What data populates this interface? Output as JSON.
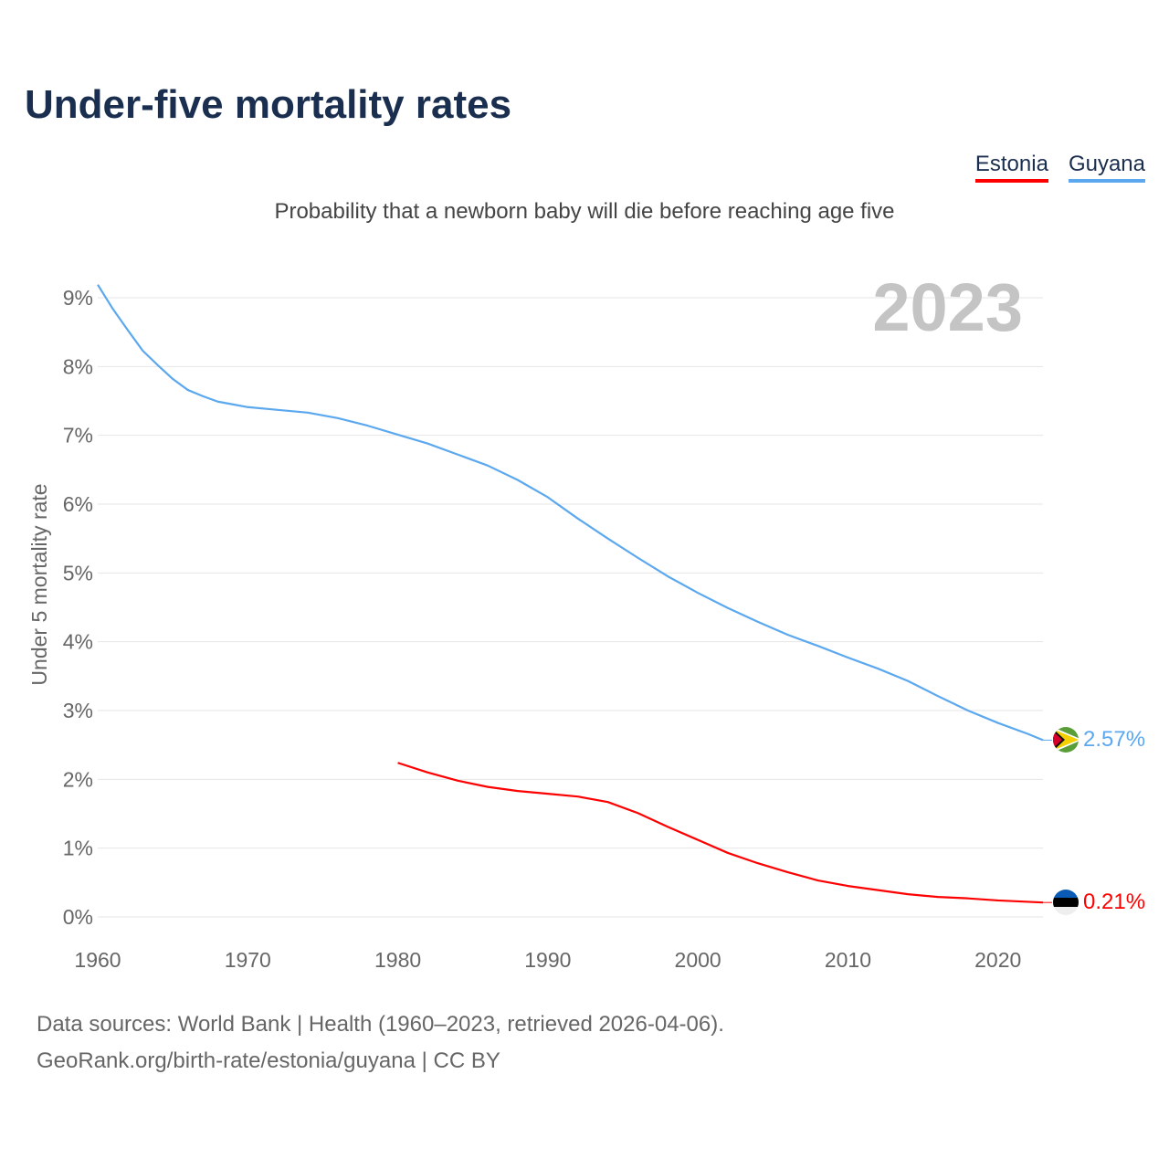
{
  "title": "Under-five mortality rates",
  "subtitle": "Probability that a newborn baby will die before reaching age five",
  "source_line1": "Data sources: World Bank | Health (1960–2023, retrieved 2026-04-06).",
  "source_line2": "GeoRank.org/birth-rate/estonia/guyana | CC BY",
  "chart_data": {
    "type": "line",
    "title": "Under-five mortality rates",
    "xlabel": "",
    "ylabel": "Under 5 mortality rate",
    "year_label": "2023",
    "xlim": [
      1960,
      2023
    ],
    "ylim": [
      0,
      9
    ],
    "x_ticks": [
      "1960",
      "1970",
      "1980",
      "1990",
      "2000",
      "2010",
      "2020"
    ],
    "y_ticks": [
      "0%",
      "1%",
      "2%",
      "3%",
      "4%",
      "5%",
      "6%",
      "7%",
      "8%",
      "9%"
    ],
    "grid": true,
    "legend_position": "top-right",
    "series": [
      {
        "name": "Estonia",
        "color": "#ff0000",
        "end_label": "0.21%",
        "x": [
          1980,
          1982,
          1984,
          1986,
          1988,
          1990,
          1992,
          1994,
          1996,
          1998,
          2000,
          2002,
          2004,
          2006,
          2008,
          2010,
          2012,
          2014,
          2016,
          2018,
          2020,
          2023
        ],
        "y": [
          2.24,
          2.1,
          1.98,
          1.89,
          1.83,
          1.79,
          1.75,
          1.67,
          1.51,
          1.31,
          1.12,
          0.93,
          0.78,
          0.65,
          0.53,
          0.45,
          0.39,
          0.33,
          0.29,
          0.27,
          0.24,
          0.21
        ]
      },
      {
        "name": "Guyana",
        "color": "#5ba8ef",
        "end_label": "2.57%",
        "x": [
          1960,
          1961,
          1962,
          1963,
          1964,
          1965,
          1966,
          1967,
          1968,
          1969,
          1970,
          1972,
          1974,
          1976,
          1978,
          1980,
          1982,
          1984,
          1986,
          1988,
          1990,
          1992,
          1994,
          1996,
          1998,
          2000,
          2002,
          2004,
          2006,
          2008,
          2010,
          2012,
          2014,
          2016,
          2018,
          2020,
          2022,
          2023
        ],
        "y": [
          9.19,
          8.84,
          8.53,
          8.23,
          8.02,
          7.82,
          7.66,
          7.57,
          7.49,
          7.45,
          7.41,
          7.37,
          7.33,
          7.25,
          7.14,
          7.01,
          6.88,
          6.72,
          6.56,
          6.35,
          6.1,
          5.79,
          5.5,
          5.22,
          4.95,
          4.71,
          4.49,
          4.29,
          4.1,
          3.94,
          3.77,
          3.61,
          3.43,
          3.21,
          3.0,
          2.82,
          2.66,
          2.57
        ]
      }
    ]
  }
}
